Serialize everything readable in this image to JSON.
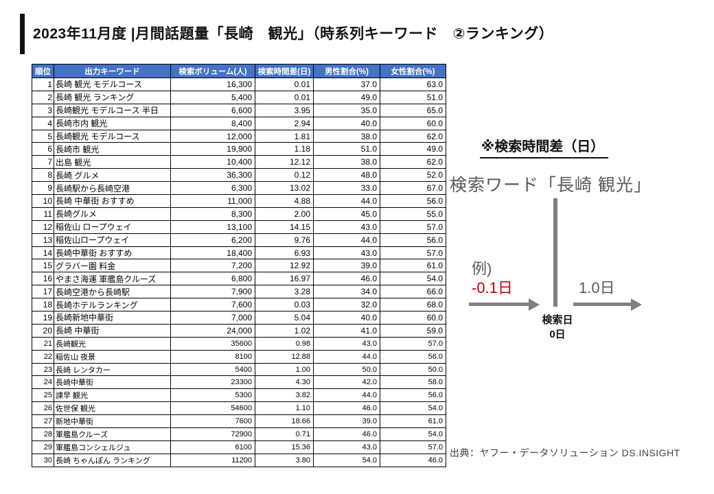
{
  "title": "2023年11月度 |月間話題量「長崎　観光」（時系列キーワード　②ランキング）",
  "table": {
    "header_bg": "#4472C4",
    "header_text_color": "#FFFFFF",
    "headers": [
      "順位",
      "出力キーワード",
      "検索ボリューム(人)",
      "検索時間差(日)",
      "男性割合(%)",
      "女性割合(%)"
    ],
    "rows": [
      {
        "rank": "1",
        "keyword": "長崎 観光 モデルコース",
        "volume": "16,300",
        "time_diff": "0.01",
        "male": "37.0",
        "female": "63.0"
      },
      {
        "rank": "2",
        "keyword": "長崎 観光 ランキング",
        "volume": "5,400",
        "time_diff": "0.01",
        "male": "49.0",
        "female": "51.0"
      },
      {
        "rank": "3",
        "keyword": "長崎観光 モデルコース 半日",
        "volume": "6,600",
        "time_diff": "3.95",
        "male": "35.0",
        "female": "65.0"
      },
      {
        "rank": "4",
        "keyword": "長崎市内 観光",
        "volume": "8,400",
        "time_diff": "2.94",
        "male": "40.0",
        "female": "60.0"
      },
      {
        "rank": "5",
        "keyword": "長崎観光 モデルコース",
        "volume": "12,000",
        "time_diff": "1.81",
        "male": "38.0",
        "female": "62.0"
      },
      {
        "rank": "6",
        "keyword": "長崎市 観光",
        "volume": "19,900",
        "time_diff": "1.18",
        "male": "51.0",
        "female": "49.0"
      },
      {
        "rank": "7",
        "keyword": "出島 観光",
        "volume": "10,400",
        "time_diff": "12.12",
        "male": "38.0",
        "female": "62.0"
      },
      {
        "rank": "8",
        "keyword": "長崎 グルメ",
        "volume": "36,300",
        "time_diff": "0.12",
        "male": "48.0",
        "female": "52.0"
      },
      {
        "rank": "9",
        "keyword": "長崎駅から長崎空港",
        "volume": "6,300",
        "time_diff": "13.02",
        "male": "33.0",
        "female": "67.0"
      },
      {
        "rank": "10",
        "keyword": "長崎 中華街 おすすめ",
        "volume": "11,000",
        "time_diff": "4.88",
        "male": "44.0",
        "female": "56.0"
      },
      {
        "rank": "11",
        "keyword": "長崎グルメ",
        "volume": "8,300",
        "time_diff": "2.00",
        "male": "45.0",
        "female": "55.0"
      },
      {
        "rank": "12",
        "keyword": "稲佐山 ロープウェイ",
        "volume": "13,100",
        "time_diff": "14.15",
        "male": "43.0",
        "female": "57.0"
      },
      {
        "rank": "13",
        "keyword": "稲佐山ロープウェイ",
        "volume": "6,200",
        "time_diff": "9.76",
        "male": "44.0",
        "female": "56.0"
      },
      {
        "rank": "14",
        "keyword": "長崎中華街 おすすめ",
        "volume": "18,400",
        "time_diff": "6.93",
        "male": "43.0",
        "female": "57.0"
      },
      {
        "rank": "15",
        "keyword": "グラバー園 料金",
        "volume": "7,200",
        "time_diff": "12.92",
        "male": "39.0",
        "female": "61.0"
      },
      {
        "rank": "16",
        "keyword": "やまさ海運 軍艦島クルーズ",
        "volume": "6,800",
        "time_diff": "16.97",
        "male": "46.0",
        "female": "54.0"
      },
      {
        "rank": "17",
        "keyword": "長崎空港から長崎駅",
        "volume": "7,900",
        "time_diff": "3.28",
        "male": "34.0",
        "female": "66.0"
      },
      {
        "rank": "18",
        "keyword": "長崎ホテルランキング",
        "volume": "7,600",
        "time_diff": "0.03",
        "male": "32.0",
        "female": "68.0"
      },
      {
        "rank": "19",
        "keyword": "長崎新地中華街",
        "volume": "7,000",
        "time_diff": "5.04",
        "male": "40.0",
        "female": "60.0"
      },
      {
        "rank": "20",
        "keyword": "長崎 中華街",
        "volume": "24,000",
        "time_diff": "1.02",
        "male": "41.0",
        "female": "59.0"
      },
      {
        "rank": "21",
        "keyword": "長崎観光",
        "volume": "35600",
        "time_diff": "0.98",
        "male": "43.0",
        "female": "57.0"
      },
      {
        "rank": "22",
        "keyword": "稲佐山 夜景",
        "volume": "8100",
        "time_diff": "12.88",
        "male": "44.0",
        "female": "56.0"
      },
      {
        "rank": "23",
        "keyword": "長崎 レンタカー",
        "volume": "5400",
        "time_diff": "1.00",
        "male": "50.0",
        "female": "50.0"
      },
      {
        "rank": "24",
        "keyword": "長崎中華街",
        "volume": "23300",
        "time_diff": "4.30",
        "male": "42.0",
        "female": "58.0"
      },
      {
        "rank": "25",
        "keyword": "諫早 観光",
        "volume": "5300",
        "time_diff": "3.82",
        "male": "44.0",
        "female": "56.0"
      },
      {
        "rank": "26",
        "keyword": "佐世保 観光",
        "volume": "54600",
        "time_diff": "1.10",
        "male": "46.0",
        "female": "54.0"
      },
      {
        "rank": "27",
        "keyword": "新地中華街",
        "volume": "7600",
        "time_diff": "18.66",
        "male": "39.0",
        "female": "61.0"
      },
      {
        "rank": "28",
        "keyword": "軍艦島クルーズ",
        "volume": "72900",
        "time_diff": "0.71",
        "male": "46.0",
        "female": "54.0"
      },
      {
        "rank": "29",
        "keyword": "軍艦島コンシェルジュ",
        "volume": "6100",
        "time_diff": "15.36",
        "male": "43.0",
        "female": "57.0"
      },
      {
        "rank": "30",
        "keyword": "長崎 ちゃんぽん ランキング",
        "volume": "11200",
        "time_diff": "3.80",
        "male": "54.0",
        "female": "46.0"
      }
    ]
  },
  "annotation": {
    "heading": "※検索時間差（日）",
    "search_word_label": "検索ワード「長崎 観光」",
    "example_label": "例)",
    "negative_example": "-0.1日",
    "positive_example": "1.0日",
    "axis_day_label": "検索日",
    "axis_zero_label": "0日",
    "colors": {
      "negative_red": "#C00000",
      "axis_gray": "#808080",
      "text_gray": "#595959"
    }
  },
  "source": "出典：ヤフー・データソリューション DS.INSIGHT"
}
